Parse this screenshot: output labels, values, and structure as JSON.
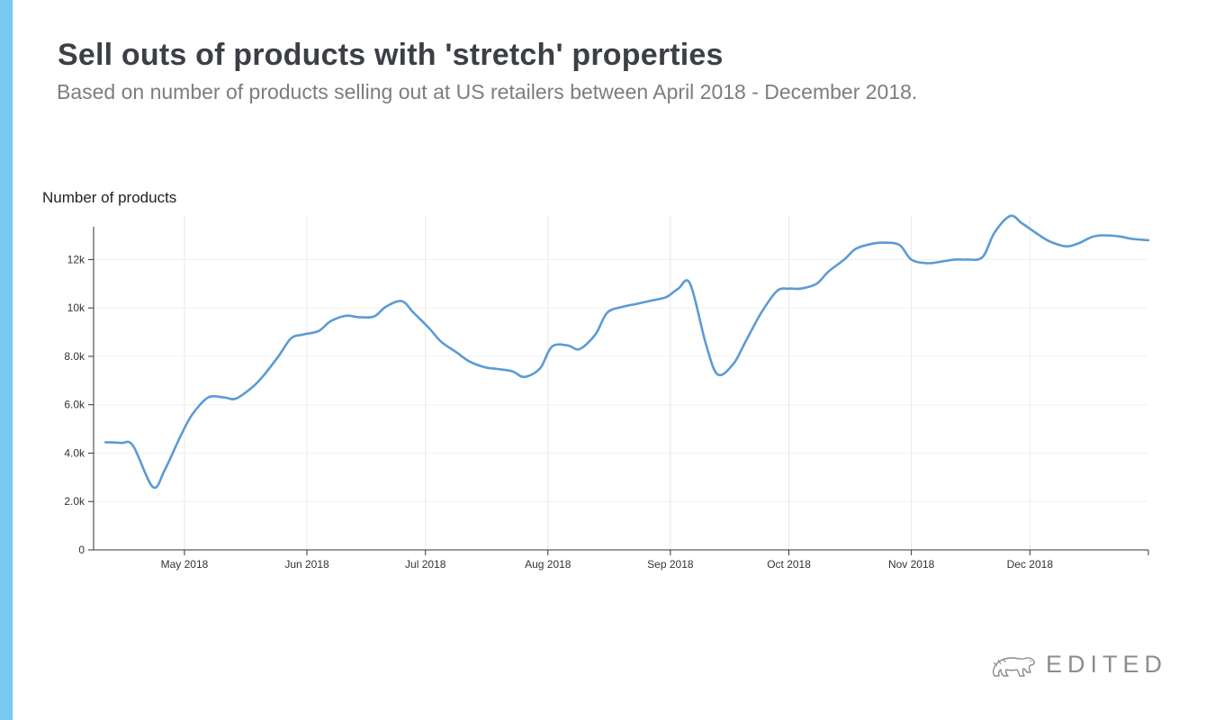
{
  "header": {
    "title": "Sell outs of products with 'stretch' properties",
    "subtitle": "Based on number of products selling out at US retailers between April 2018 - December 2018."
  },
  "brand": {
    "name": "EDITED",
    "accent_color": "#79c8f2"
  },
  "chart_data": {
    "type": "line",
    "ylabel": "Number of products",
    "xlabel": "",
    "ylim": [
      0,
      13800
    ],
    "yticks": [
      0,
      2000,
      4000,
      6000,
      8000,
      10000,
      12000
    ],
    "ytick_labels": [
      "0",
      "2.0k",
      "4.0k",
      "6.0k",
      "8.0k",
      "10k",
      "12k"
    ],
    "xticks": [
      "2018-05-01",
      "2018-06-01",
      "2018-07-01",
      "2018-08-01",
      "2018-09-01",
      "2018-10-01",
      "2018-11-01",
      "2018-12-01"
    ],
    "xtick_labels": [
      "May 2018",
      "Jun 2018",
      "Jul 2018",
      "Aug 2018",
      "Sep 2018",
      "Oct 2018",
      "Nov 2018",
      "Dec 2018"
    ],
    "xlim": [
      "2018-04-08",
      "2018-12-31"
    ],
    "grid": true,
    "line_color": "#5b9bd5",
    "series": [
      {
        "x": [
          "2018-04-11",
          "2018-04-15",
          "2018-04-18",
          "2018-04-23",
          "2018-04-26",
          "2018-04-30",
          "2018-05-03",
          "2018-05-07",
          "2018-05-11",
          "2018-05-14",
          "2018-05-18",
          "2018-05-21",
          "2018-05-25",
          "2018-05-28",
          "2018-05-31",
          "2018-06-04",
          "2018-06-07",
          "2018-06-11",
          "2018-06-14",
          "2018-06-18",
          "2018-06-21",
          "2018-06-25",
          "2018-06-28",
          "2018-07-02",
          "2018-07-05",
          "2018-07-09",
          "2018-07-12",
          "2018-07-16",
          "2018-07-19",
          "2018-07-23",
          "2018-07-26",
          "2018-07-30",
          "2018-08-02",
          "2018-08-06",
          "2018-08-09",
          "2018-08-13",
          "2018-08-16",
          "2018-08-20",
          "2018-08-23",
          "2018-08-27",
          "2018-08-31",
          "2018-09-03",
          "2018-09-06",
          "2018-09-10",
          "2018-09-13",
          "2018-09-17",
          "2018-09-20",
          "2018-09-24",
          "2018-09-28",
          "2018-10-01",
          "2018-10-04",
          "2018-10-08",
          "2018-10-11",
          "2018-10-15",
          "2018-10-18",
          "2018-10-22",
          "2018-10-25",
          "2018-10-29",
          "2018-11-01",
          "2018-11-05",
          "2018-11-08",
          "2018-11-12",
          "2018-11-15",
          "2018-11-19",
          "2018-11-22",
          "2018-11-26",
          "2018-11-29",
          "2018-12-03",
          "2018-12-06",
          "2018-12-10",
          "2018-12-13",
          "2018-12-17",
          "2018-12-20",
          "2018-12-24",
          "2018-12-27",
          "2018-12-31"
        ],
        "y": [
          4450,
          4420,
          4300,
          2600,
          3300,
          4700,
          5600,
          6300,
          6300,
          6250,
          6700,
          7200,
          8050,
          8750,
          8900,
          9050,
          9450,
          9680,
          9620,
          9650,
          10050,
          10280,
          9800,
          9150,
          8600,
          8150,
          7800,
          7550,
          7480,
          7380,
          7150,
          7500,
          8400,
          8450,
          8300,
          8900,
          9800,
          10050,
          10150,
          10300,
          10450,
          10800,
          11000,
          8500,
          7250,
          7700,
          8600,
          9800,
          10700,
          10800,
          10800,
          11000,
          11500,
          12000,
          12450,
          12650,
          12700,
          12600,
          12000,
          11850,
          11900,
          12000,
          12000,
          12100,
          13100,
          13800,
          13500,
          13050,
          12750,
          12550,
          12650,
          12950,
          13000,
          12950,
          12850,
          12800
        ]
      }
    ]
  }
}
